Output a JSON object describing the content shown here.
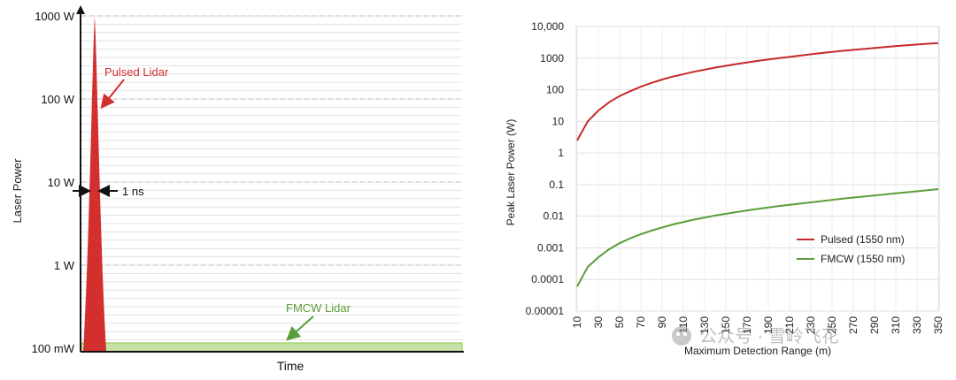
{
  "chart_data": [
    {
      "type": "area",
      "ylabel": "Laser Power",
      "xlabel": "Time",
      "y_ticks": [
        "1000 W",
        "100 W",
        "10 W",
        "1 W",
        "100 mW"
      ],
      "y_scale": "log",
      "ylim_watts": [
        0.1,
        1000
      ],
      "series": [
        {
          "name": "Pulsed Lidar",
          "peak_watts": 1000,
          "pulse_width": "1 ns",
          "color": "#d32f2f"
        },
        {
          "name": "FMCW Lidar",
          "level_watts": 0.1,
          "color": "#8bc34a",
          "fill": "#c5e1a5"
        }
      ],
      "annotations": [
        "Pulsed Lidar",
        "FMCW Lidar",
        "1 ns"
      ],
      "grid": true
    },
    {
      "type": "line",
      "xlabel": "Maximum Detection Range (m)",
      "ylabel": "Peak Laser Power (W)",
      "y_scale": "log",
      "ylim": [
        1e-05,
        10000
      ],
      "xlim": [
        10,
        350
      ],
      "x_ticks": [
        "10",
        "30",
        "50",
        "70",
        "90",
        "110",
        "130",
        "150",
        "170",
        "190",
        "210",
        "230",
        "250",
        "270",
        "290",
        "310",
        "330",
        "350"
      ],
      "y_ticks": [
        "10,000",
        "1000",
        "100",
        "10",
        "1",
        "0.1",
        "0.01",
        "0.001",
        "0.0001",
        "0.00001"
      ],
      "legend_position": "right",
      "grid": true,
      "series": [
        {
          "name": "Pulsed (1550 nm)",
          "color": "#c62828",
          "x": [
            10,
            20,
            30,
            40,
            50,
            60,
            70,
            80,
            90,
            100,
            120,
            140,
            160,
            180,
            200,
            220,
            240,
            260,
            280,
            300,
            320,
            340,
            350
          ],
          "y": [
            2.5,
            10,
            22,
            40,
            63,
            90,
            125,
            165,
            210,
            260,
            370,
            500,
            650,
            820,
            1000,
            1200,
            1450,
            1700,
            1950,
            2250,
            2550,
            2850,
            3000
          ]
        },
        {
          "name": "FMCW (1550 nm)",
          "color": "#5a9e3a",
          "x": [
            10,
            20,
            30,
            40,
            50,
            60,
            70,
            80,
            90,
            100,
            120,
            140,
            160,
            180,
            200,
            220,
            240,
            260,
            280,
            300,
            320,
            340,
            350
          ],
          "y": [
            6e-05,
            0.00025,
            0.0005,
            0.0009,
            0.0014,
            0.002,
            0.0027,
            0.0035,
            0.0044,
            0.0055,
            0.0078,
            0.0105,
            0.0135,
            0.017,
            0.021,
            0.025,
            0.03,
            0.036,
            0.042,
            0.049,
            0.057,
            0.066,
            0.072
          ]
        }
      ]
    }
  ],
  "watermark": "公众号 · 雪岭飞花"
}
